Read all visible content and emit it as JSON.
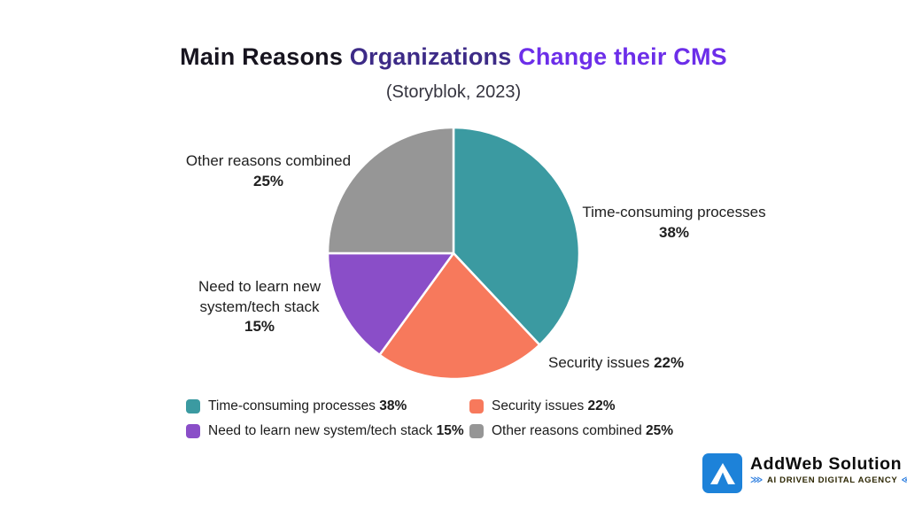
{
  "title": {
    "part1": "Main Reasons",
    "part2": "Organizations",
    "part3": "Change their CMS",
    "colors": [
      "#17141f",
      "#3d2b87",
      "#6c2ee9"
    ]
  },
  "subtitle": "(Storyblok, 2023)",
  "chart_data": {
    "type": "pie",
    "title": "Main Reasons Organizations Change their CMS",
    "subtitle": "(Storyblok, 2023)",
    "categories": [
      "Time-consuming processes",
      "Security issues",
      "Need to learn new system/tech stack",
      "Other reasons combined"
    ],
    "values": [
      38,
      22,
      15,
      25
    ],
    "unit": "%",
    "colors": [
      "#3b9aa1",
      "#f7795c",
      "#8a4ec8",
      "#969696"
    ],
    "start_angle": "12 o'clock",
    "direction": "clockwise",
    "legend_position": "bottom"
  },
  "callouts": {
    "time": {
      "label": "Time-consuming processes",
      "pct": "38%"
    },
    "security": {
      "label": "Security issues",
      "pct": "22%"
    },
    "learn": {
      "line1": "Need to learn new",
      "line2": "system/tech stack",
      "pct": "15%"
    },
    "other": {
      "label": "Other reasons combined",
      "pct": "25%"
    }
  },
  "legend": {
    "items": [
      {
        "label": "Time-consuming processes",
        "pct": "38%"
      },
      {
        "label": "Security issues",
        "pct": "22%"
      },
      {
        "label": "Need to learn new system/tech stack",
        "pct": "15%"
      },
      {
        "label": "Other reasons combined",
        "pct": "25%"
      }
    ]
  },
  "logo": {
    "name": "AddWeb Solution",
    "tagline": "AI DRIVEN DIGITAL AGENCY",
    "brand_blue": "#1d82d9",
    "left_glyph": "⋙",
    "right_glyph": "⋘"
  }
}
